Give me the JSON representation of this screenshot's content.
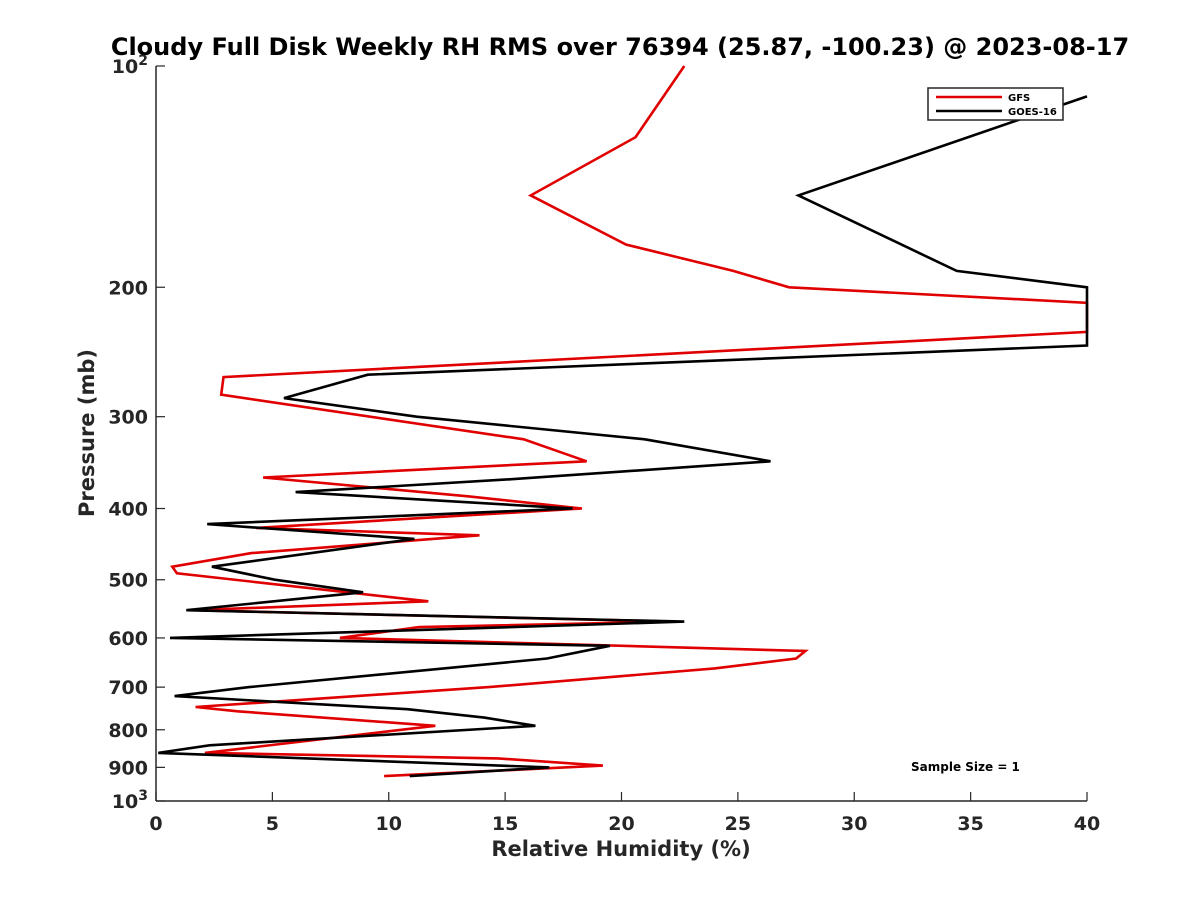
{
  "chart_data": {
    "type": "line",
    "title": "Cloudy Full Disk Weekly RH RMS over 76394 (25.87, -100.23) @ 2023-08-17",
    "xlabel": "Relative Humidity (%)",
    "ylabel": "Pressure (mb)",
    "xlim": [
      0,
      40
    ],
    "ylim": [
      100,
      1000
    ],
    "yscale": "log",
    "yreversed": true,
    "grid": false,
    "legend_position": "top-right",
    "annotation": "Sample Size = 1",
    "x_ticks": [
      "0",
      "5",
      "10",
      "15",
      "20",
      "25",
      "30",
      "35",
      "40"
    ],
    "y_ticks": [
      {
        "base": "10",
        "exp": "2",
        "value": 100
      },
      {
        "label": "200",
        "value": 200
      },
      {
        "label": "300",
        "value": 300
      },
      {
        "label": "400",
        "value": 400
      },
      {
        "label": "500",
        "value": 500
      },
      {
        "label": "600",
        "value": 600
      },
      {
        "label": "700",
        "value": 700
      },
      {
        "label": "800",
        "value": 800
      },
      {
        "label": "900",
        "value": 900
      },
      {
        "base": "10",
        "exp": "3",
        "value": 1000
      }
    ],
    "series": [
      {
        "name": "GFS",
        "color": "#e00000",
        "points": [
          [
            22.7,
            100
          ],
          [
            20.6,
            125
          ],
          [
            16.1,
            150
          ],
          [
            20.2,
            175
          ],
          [
            24.8,
            190
          ],
          [
            27.2,
            200
          ],
          [
            40,
            210
          ],
          [
            40,
            230
          ],
          [
            2.9,
            265
          ],
          [
            2.8,
            280
          ],
          [
            15.8,
            322
          ],
          [
            18.5,
            345
          ],
          [
            4.6,
            363
          ],
          [
            13.4,
            385
          ],
          [
            18.3,
            400
          ],
          [
            4.3,
            425
          ],
          [
            13.9,
            435
          ],
          [
            4.1,
            460
          ],
          [
            0.7,
            480
          ],
          [
            0.9,
            490
          ],
          [
            11.7,
            535
          ],
          [
            1.6,
            550
          ],
          [
            22.3,
            570
          ],
          [
            11.3,
            580
          ],
          [
            7.9,
            600
          ],
          [
            27.9,
            625
          ],
          [
            27.5,
            640
          ],
          [
            24.0,
            660
          ],
          [
            14.3,
            700
          ],
          [
            1.7,
            745
          ],
          [
            3.5,
            755
          ],
          [
            12.0,
            790
          ],
          [
            2.1,
            860
          ],
          [
            14.7,
            875
          ],
          [
            19.2,
            895
          ],
          [
            9.8,
            925
          ]
        ]
      },
      {
        "name": "GOES-16",
        "color": "#000000",
        "points": [
          [
            40,
            110
          ],
          [
            27.6,
            150
          ],
          [
            34.4,
            190
          ],
          [
            40,
            200
          ],
          [
            40,
            240
          ],
          [
            9.1,
            263
          ],
          [
            5.5,
            283
          ],
          [
            11.2,
            300
          ],
          [
            21.0,
            322
          ],
          [
            26.4,
            345
          ],
          [
            15.2,
            365
          ],
          [
            6.0,
            380
          ],
          [
            17.9,
            400
          ],
          [
            2.2,
            420
          ],
          [
            11.1,
            440
          ],
          [
            2.4,
            480
          ],
          [
            5.1,
            500
          ],
          [
            8.9,
            520
          ],
          [
            1.3,
            550
          ],
          [
            22.7,
            570
          ],
          [
            0.6,
            600
          ],
          [
            19.5,
            615
          ],
          [
            16.8,
            640
          ],
          [
            4.0,
            700
          ],
          [
            0.8,
            720
          ],
          [
            10.8,
            750
          ],
          [
            14.1,
            770
          ],
          [
            16.3,
            790
          ],
          [
            2.3,
            840
          ],
          [
            0.1,
            860
          ],
          [
            16.9,
            900
          ],
          [
            10.9,
            925
          ]
        ]
      }
    ]
  }
}
